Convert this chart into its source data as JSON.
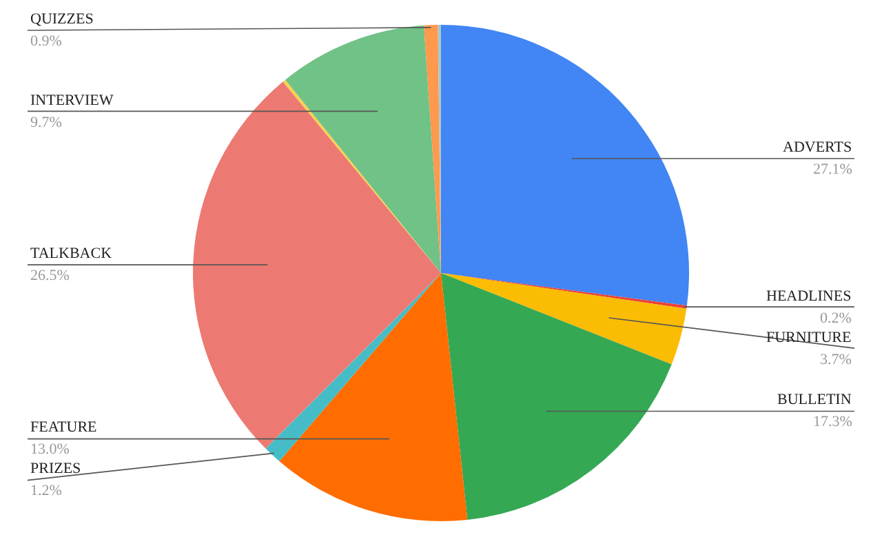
{
  "chart_data": {
    "type": "pie",
    "categories": [
      "ADVERTS",
      "HEADLINES",
      "FURNITURE",
      "BULLETIN",
      "FEATURE",
      "PRIZES",
      "TALKBACK",
      null,
      "INTERVIEW",
      "QUIZZES",
      null
    ],
    "values": [
      27.1,
      0.2,
      3.7,
      17.3,
      13.0,
      1.2,
      26.5,
      0.2,
      9.7,
      0.9,
      0.2
    ],
    "value_labels": [
      "27.1%",
      "0.2%",
      "3.7%",
      "17.3%",
      "13.0%",
      "1.2%",
      "26.5%",
      null,
      "9.7%",
      "0.9%",
      null
    ],
    "colors": [
      "#4285f4",
      "#ea4335",
      "#fbbc04",
      "#34a853",
      "#ff6d01",
      "#46bdc6",
      "#ec7a72",
      "#fcd04f",
      "#71c287",
      "#ff994d",
      "#a8c8cc"
    ]
  }
}
